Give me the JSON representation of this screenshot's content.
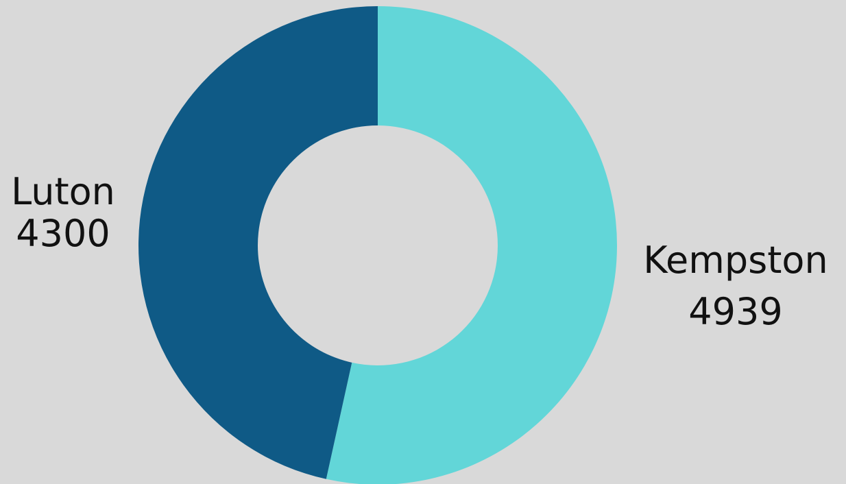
{
  "chart_data": {
    "type": "pie",
    "style": "donut",
    "title": "",
    "background": "#d9d9d9",
    "slices": [
      {
        "label": "Kempston",
        "value": 4939,
        "color": "#62d6d8"
      },
      {
        "label": "Luton",
        "value": 4300,
        "color": "#0f5a86"
      }
    ]
  }
}
